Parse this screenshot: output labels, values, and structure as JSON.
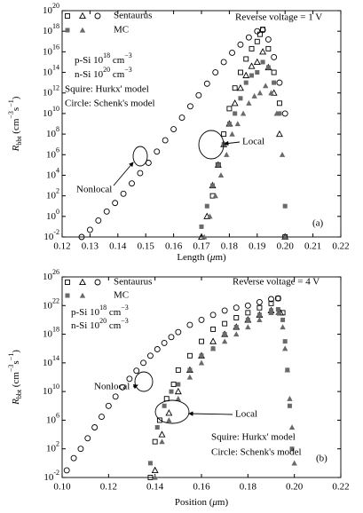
{
  "chart_data": [
    {
      "type": "scatter",
      "yscale": "log",
      "panel_label": "(a)",
      "xlabel": [
        {
          "t": "Length ("
        },
        {
          "t": "μ",
          "s": "italic"
        },
        {
          "t": "m)"
        }
      ],
      "ylabel": [
        {
          "t": "R",
          "s": "italic"
        },
        {
          "t": "bbt",
          "s": "sub"
        },
        {
          "t": " (cm"
        },
        {
          "t": "−3",
          "s": "sup"
        },
        {
          "t": "s"
        },
        {
          "t": "−1",
          "s": "sup"
        },
        {
          "t": ")"
        }
      ],
      "xlim": [
        0.12,
        0.22
      ],
      "xticks": [
        0.12,
        0.13,
        0.14,
        0.15,
        0.16,
        0.17,
        0.18,
        0.19,
        {
          "value": 0.2,
          "label": "0.20"
        },
        0.21,
        0.22
      ],
      "ylim": [
        0.01,
        1e+20
      ],
      "yticks": [
        {
          "value": 0.01,
          "label": [
            {
              "t": "10"
            },
            {
              "t": "-2",
              "s": "sup"
            }
          ]
        },
        {
          "value": 1,
          "label": [
            {
              "t": "10"
            },
            {
              "t": "0",
              "s": "sup"
            }
          ]
        },
        {
          "value": 100.0,
          "label": [
            {
              "t": "10"
            },
            {
              "t": "2",
              "s": "sup"
            }
          ]
        },
        {
          "value": 10000.0,
          "label": [
            {
              "t": "10"
            },
            {
              "t": "4",
              "s": "sup"
            }
          ]
        },
        {
          "value": 1000000.0,
          "label": [
            {
              "t": "10"
            },
            {
              "t": "6",
              "s": "sup"
            }
          ]
        },
        {
          "value": 100000000.0,
          "label": [
            {
              "t": "10"
            },
            {
              "t": "8",
              "s": "sup"
            }
          ]
        },
        {
          "value": 10000000000.0,
          "label": [
            {
              "t": "10"
            },
            {
              "t": "10",
              "s": "sup"
            }
          ]
        },
        {
          "value": 1000000000000.0,
          "label": [
            {
              "t": "10"
            },
            {
              "t": "12",
              "s": "sup"
            }
          ]
        },
        {
          "value": 100000000000000.0,
          "label": [
            {
              "t": "10"
            },
            {
              "t": "14",
              "s": "sup"
            }
          ]
        },
        {
          "value": 1e+16,
          "label": [
            {
              "t": "10"
            },
            {
              "t": "16",
              "s": "sup"
            }
          ]
        },
        {
          "value": 1e+18,
          "label": [
            {
              "t": "10"
            },
            {
              "t": "18",
              "s": "sup"
            }
          ]
        },
        {
          "value": 1e+20,
          "label": [
            {
              "t": "10"
            },
            {
              "t": "20",
              "s": "sup"
            }
          ]
        }
      ],
      "legend": [
        {
          "label": "Sentaurus",
          "markers": [
            "square-open",
            "triangle-open",
            "circle-open"
          ],
          "color": "#000000"
        },
        {
          "label": "MC",
          "markers": [
            "square-filled",
            "triangle-filled"
          ],
          "color": "#6a6a6a"
        }
      ],
      "annotations": [
        "Reverse voltage = 1 V",
        [
          {
            "t": "p-Si 10"
          },
          {
            "t": "18",
            "s": "sup"
          },
          {
            "t": " cm"
          },
          {
            "t": "−3",
            "s": "sup"
          }
        ],
        [
          {
            "t": "n-Si 10"
          },
          {
            "t": "20",
            "s": "sup"
          },
          {
            "t": " cm"
          },
          {
            "t": "−3",
            "s": "sup"
          }
        ],
        "Squire: Hurkx' model",
        "Circle: Schenk's model",
        "Nonlocal",
        "Local"
      ],
      "series": [
        {
          "marker": "circle-open",
          "color": "#000000",
          "x": [
            0.127,
            0.13,
            0.133,
            0.136,
            0.139,
            0.142,
            0.145,
            0.148,
            0.151,
            0.154,
            0.157,
            0.16,
            0.163,
            0.166,
            0.169,
            0.172,
            0.175,
            0.178,
            0.181,
            0.184,
            0.187,
            0.19,
            0.192,
            0.194,
            0.196,
            0.198,
            0.2
          ],
          "values": [
            0.01,
            0.05,
            0.4,
            3.0,
            20.0,
            160.0,
            1600.0,
            16000.0,
            160000.0,
            2000000.0,
            25000000.0,
            300000000.0,
            4000000000.0,
            50000000000.0,
            600000000000.0,
            8000000000000.0,
            100000000000000.0,
            1000000000000000.0,
            8000000000000000.0,
            5e+16,
            2.5e+17,
            1e+18,
            1.3e+18,
            1.6e+17,
            3000000000000000.0,
            10000000000000.0,
            10000000000.0
          ]
        },
        {
          "marker": "square-open",
          "color": "#000000",
          "x": [
            0.174,
            0.176,
            0.178,
            0.18,
            0.182,
            0.184,
            0.186,
            0.188,
            0.19,
            0.191,
            0.192,
            0.194,
            0.196,
            0.198,
            0.2
          ],
          "values": [
            100.0,
            100000.0,
            100000000.0,
            30000000000.0,
            3000000000000.0,
            100000000000000.0,
            2000000000000000.0,
            2e+16,
            1e+17,
            5e+17,
            1.5e+18,
            2e+16,
            100000000000000.0,
            100000000000.0,
            0.01
          ]
        },
        {
          "marker": "triangle-open",
          "color": "#000000",
          "x": [
            0.17,
            0.172,
            0.174,
            0.176,
            0.178,
            0.18,
            0.182,
            0.184,
            0.186,
            0.188,
            0.19,
            0.192,
            0.194,
            0.196,
            0.198,
            0.2
          ],
          "values": [
            0.01,
            1.0,
            1000.0,
            100000.0,
            10000000.0,
            1000000000.0,
            100000000000.0,
            3000000000000.0,
            50000000000000.0,
            400000000000000.0,
            1000000000000000.0,
            1e+16,
            300000000000000.0,
            1000000000000.0,
            100000000.0,
            0.01
          ]
        },
        {
          "marker": "square-filled",
          "color": "#6a6a6a",
          "x": [
            0.17,
            0.172,
            0.174,
            0.176,
            0.178,
            0.18,
            0.182,
            0.184,
            0.186,
            0.188,
            0.19,
            0.192,
            0.194,
            0.196,
            0.198,
            0.2
          ],
          "values": [
            0.1,
            10.0,
            1000.0,
            100000.0,
            10000000.0,
            1000000000.0,
            10000000000.0,
            300000000000.0,
            10000000000000.0,
            50000000000000.0,
            100000000000000.0,
            1000000000000000.0,
            300000000000000.0,
            10000000000000.0,
            10000000000.0,
            10.0
          ]
        },
        {
          "marker": "triangle-filled",
          "color": "#6a6a6a",
          "x": [
            0.171,
            0.173,
            0.175,
            0.177,
            0.179,
            0.181,
            0.183,
            0.185,
            0.187,
            0.189,
            0.191,
            0.193,
            0.195,
            0.197,
            0.199,
            0.2
          ],
          "values": [
            0.01,
            1.0,
            100.0,
            10000.0,
            1000000.0,
            100000000.0,
            1000000000.0,
            10000000000.0,
            100000000000.0,
            500000000000.0,
            1000000000000.0,
            5000000000000.0,
            1000000000000.0,
            10000000000.0,
            1000000.0,
            0.01
          ]
        }
      ]
    },
    {
      "type": "scatter",
      "yscale": "log",
      "panel_label": "(b)",
      "xlabel": [
        {
          "t": "Position ("
        },
        {
          "t": "μ",
          "s": "italic"
        },
        {
          "t": "m)"
        }
      ],
      "ylabel": [
        {
          "t": "R",
          "s": "italic"
        },
        {
          "t": "bbt",
          "s": "sub"
        },
        {
          "t": " (cm"
        },
        {
          "t": "−3",
          "s": "sup"
        },
        {
          "t": "s"
        },
        {
          "t": "−1",
          "s": "sup"
        },
        {
          "t": ")"
        }
      ],
      "xlim": [
        0.1,
        0.22
      ],
      "xticks": [
        {
          "value": 0.1,
          "label": "0.10"
        },
        0.12,
        0.14,
        0.16,
        0.18,
        {
          "value": 0.2,
          "label": "0.20"
        },
        0.22
      ],
      "ylim": [
        0.01,
        1e+26
      ],
      "yticks": [
        {
          "value": 0.01,
          "label": [
            {
              "t": "10"
            },
            {
              "t": "-2",
              "s": "sup"
            }
          ]
        },
        {
          "value": 100.0,
          "label": [
            {
              "t": "10"
            },
            {
              "t": "2",
              "s": "sup"
            }
          ]
        },
        {
          "value": 1000000.0,
          "label": [
            {
              "t": "10"
            },
            {
              "t": "6",
              "s": "sup"
            }
          ]
        },
        {
          "value": 10000000000.0,
          "label": [
            {
              "t": "10"
            },
            {
              "t": "10",
              "s": "sup"
            }
          ]
        },
        {
          "value": 100000000000000.0,
          "label": [
            {
              "t": "10"
            },
            {
              "t": "14",
              "s": "sup"
            }
          ]
        },
        {
          "value": 1e+18,
          "label": [
            {
              "t": "10"
            },
            {
              "t": "18",
              "s": "sup"
            }
          ]
        },
        {
          "value": 1e+22,
          "label": [
            {
              "t": "10"
            },
            {
              "t": "22",
              "s": "sup"
            }
          ]
        },
        {
          "value": 1e+26,
          "label": [
            {
              "t": "10"
            },
            {
              "t": "26",
              "s": "sup"
            }
          ]
        }
      ],
      "legend": [
        {
          "label": "Sentaurus",
          "markers": [
            "square-open",
            "triangle-open",
            "circle-open"
          ],
          "color": "#000000"
        },
        {
          "label": "MC",
          "markers": [
            "square-filled",
            "triangle-filled"
          ],
          "color": "#6a6a6a"
        }
      ],
      "annotations": [
        "Reverse voltage = 4 V",
        [
          {
            "t": "p-Si 10"
          },
          {
            "t": "18",
            "s": "sup"
          },
          {
            "t": " cm"
          },
          {
            "t": "−3",
            "s": "sup"
          }
        ],
        [
          {
            "t": "n-Si 10"
          },
          {
            "t": "20",
            "s": "sup"
          },
          {
            "t": " cm"
          },
          {
            "t": "−3",
            "s": "sup"
          }
        ],
        "Squire: Hurkx' model",
        "Circle: Schenk's model",
        "Nonlocal",
        "Local"
      ],
      "series": [
        {
          "marker": "circle-open",
          "color": "#000000",
          "x": [
            0.102,
            0.105,
            0.108,
            0.111,
            0.114,
            0.117,
            0.12,
            0.123,
            0.126,
            0.129,
            0.132,
            0.135,
            0.138,
            0.141,
            0.144,
            0.147,
            0.15,
            0.155,
            0.16,
            0.165,
            0.17,
            0.175,
            0.18,
            0.185,
            0.19,
            0.193
          ],
          "values": [
            0.1,
            5.0,
            100.0,
            3000.0,
            100000.0,
            3000000.0,
            100000000.0,
            2000000000.0,
            40000000000.0,
            600000000000.0,
            8000000000000.0,
            100000000000000.0,
            1000000000000000.0,
            8000000000000000.0,
            6e+16,
            4e+17,
            2e+18,
            2e+19,
            1e+20,
            5e+20,
            2e+21,
            5e+21,
            1e+22,
            3e+22,
            8e+22,
            1e+23
          ]
        },
        {
          "marker": "square-open",
          "color": "#000000",
          "x": [
            0.138,
            0.14,
            0.142,
            0.145,
            0.148,
            0.15,
            0.155,
            0.16,
            0.165,
            0.17,
            0.175,
            0.18,
            0.185,
            0.19,
            0.193,
            0.195
          ],
          "values": [
            0.01,
            1000.0,
            1000000.0,
            1000000000.0,
            100000000000.0,
            10000000000000.0,
            1000000000000000.0,
            1e+17,
            5e+18,
            3e+19,
            2e+20,
            1e+21,
            5e+21,
            2e+22,
            1e+23,
            1e+21
          ]
        },
        {
          "marker": "triangle-open",
          "color": "#000000",
          "x": [
            0.14,
            0.143,
            0.146,
            0.15,
            0.155,
            0.16,
            0.165,
            0.17,
            0.175,
            0.18,
            0.185,
            0.19,
            0.194
          ],
          "values": [
            0.1,
            10000.0,
            10000000.0,
            10000000000.0,
            10000000000000.0,
            1000000000000000.0,
            1e+17,
            1e+18,
            1e+19,
            1e+20,
            5e+20,
            2e+21,
            1e+21
          ]
        },
        {
          "marker": "square-filled",
          "color": "#6a6a6a",
          "x": [
            0.138,
            0.141,
            0.144,
            0.147,
            0.15,
            0.155,
            0.16,
            0.165,
            0.17,
            0.175,
            0.18,
            0.185,
            0.19,
            0.193,
            0.195,
            0.196,
            0.197,
            0.198,
            0.199
          ],
          "values": [
            1.0,
            100000.0,
            100000000.0,
            10000000000.0,
            100000000000.0,
            10000000000000.0,
            1000000000000000.0,
            1e+16,
            1e+18,
            1e+19,
            1e+20,
            5e+20,
            2e+21,
            3e+21,
            1e+20,
            1e+17,
            10000000000000.0,
            100000000.0,
            100.0
          ]
        },
        {
          "marker": "triangle-filled",
          "color": "#6a6a6a",
          "x": [
            0.14,
            0.143,
            0.146,
            0.15,
            0.155,
            0.16,
            0.165,
            0.17,
            0.175,
            0.18,
            0.185,
            0.19,
            0.193,
            0.195,
            0.196,
            0.197,
            0.198,
            0.199,
            0.2
          ],
          "values": [
            0.01,
            1000.0,
            1000000.0,
            1000000000.0,
            1000000000000.0,
            100000000000000.0,
            1e+16,
            1e+17,
            1e+18,
            1e+19,
            1e+20,
            1e+21,
            1e+21,
            1e+19,
            1e+16,
            10000000000000.0,
            1000000000.0,
            100000.0,
            1.0
          ]
        }
      ]
    }
  ]
}
